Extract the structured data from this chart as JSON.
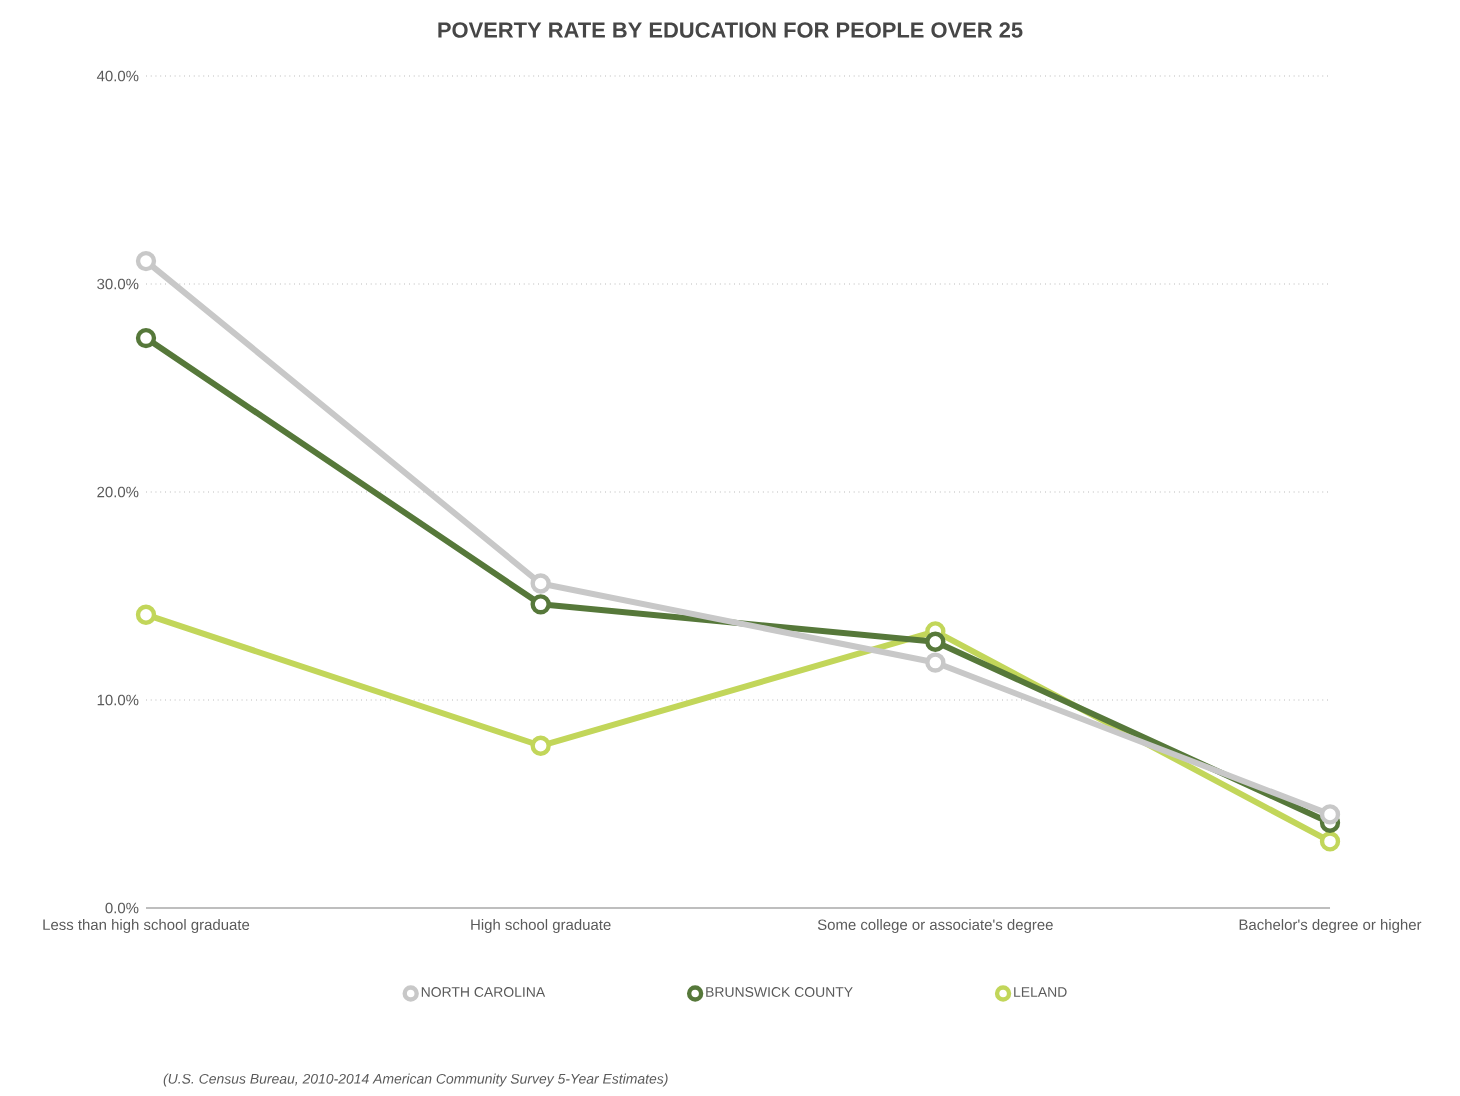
{
  "chart_data": {
    "type": "line",
    "title": "POVERTY RATE BY EDUCATION FOR PEOPLE OVER 25",
    "categories": [
      "Less than high school graduate",
      "High school graduate",
      "Some college or associate's degree",
      "Bachelor's degree or higher"
    ],
    "series": [
      {
        "name": "NORTH CAROLINA",
        "color": "#c8c8c8",
        "values": [
          31.1,
          15.6,
          11.8,
          4.5
        ]
      },
      {
        "name": "BRUNSWICK COUNTY",
        "color": "#56783a",
        "values": [
          27.4,
          14.6,
          12.8,
          4.1
        ]
      },
      {
        "name": "LELAND",
        "color": "#c2d65a",
        "values": [
          14.1,
          7.8,
          13.3,
          3.2
        ]
      }
    ],
    "ylim": [
      0,
      40
    ],
    "yticks": [
      {
        "value": 0,
        "label": "0.0%"
      },
      {
        "value": 10,
        "label": "10.0%"
      },
      {
        "value": 20,
        "label": "20.0%"
      },
      {
        "value": 30,
        "label": "30.0%"
      },
      {
        "value": 40,
        "label": "40.0%"
      }
    ],
    "grid": "y",
    "legend": "bottom",
    "marker": "circle",
    "line_style": "solid",
    "annotations": [
      "(U.S. Census Bureau, 2010-2014 American Community Survey 5-Year Estimates)"
    ]
  }
}
